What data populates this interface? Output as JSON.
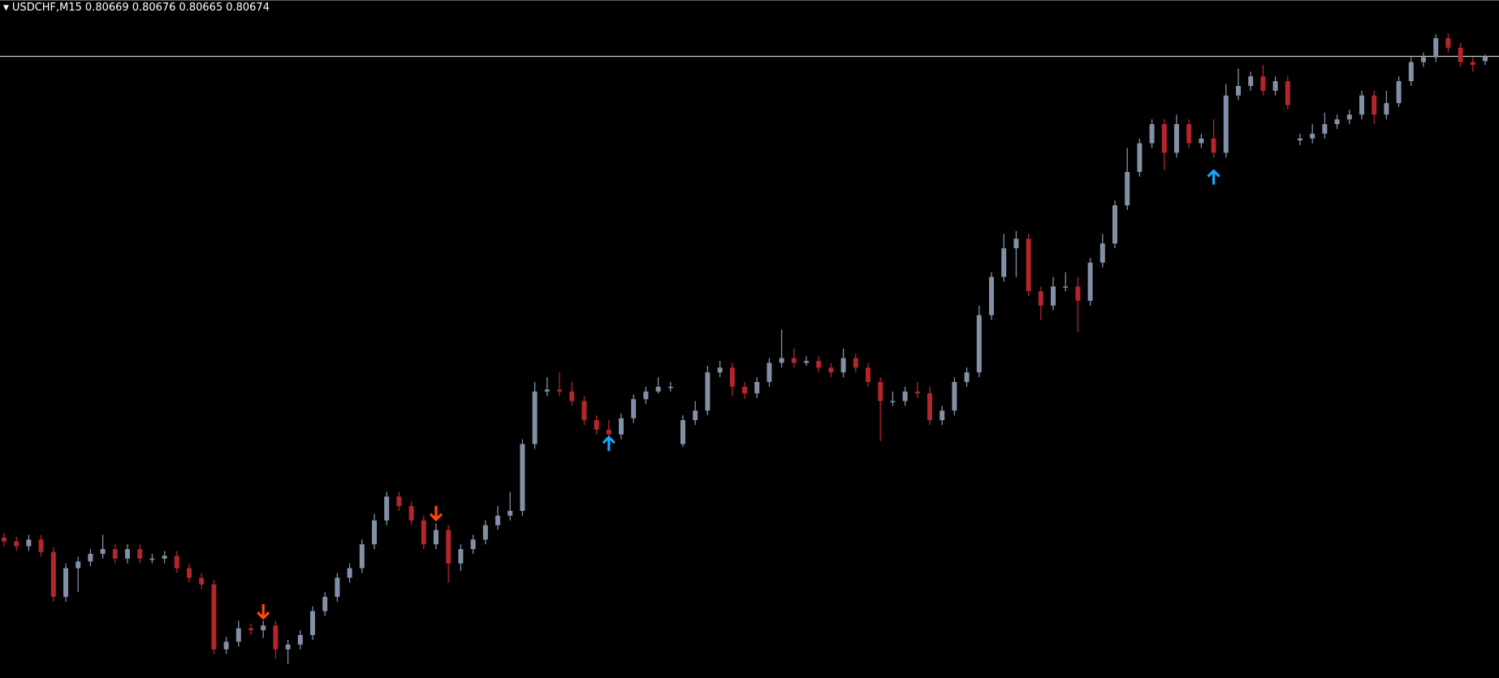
{
  "chart_data": {
    "type": "candlestick",
    "title": "USDCHF,M15",
    "open": [
      0.8017,
      0.80166,
      0.80161,
      0.80168,
      0.80155,
      0.80108,
      0.80138,
      0.80145,
      0.80153,
      0.80158,
      0.80148,
      0.80158,
      0.80148,
      0.80148,
      0.80151,
      0.80138,
      0.80128,
      0.80121,
      0.80053,
      0.80061,
      0.80075,
      0.80073,
      0.80078,
      0.80053,
      0.80058,
      0.80068,
      0.80093,
      0.80108,
      0.80128,
      0.80138,
      0.80163,
      0.80188,
      0.80213,
      0.80203,
      0.80188,
      0.80163,
      0.80178,
      0.80143,
      0.80158,
      0.80168,
      0.80183,
      0.80193,
      0.80198,
      0.80268,
      0.80323,
      0.80325,
      0.80323,
      0.80313,
      0.80293,
      0.80283,
      0.80278,
      0.80295,
      0.80315,
      0.80323,
      0.80328,
      0.80268,
      0.80293,
      0.80303,
      0.80343,
      0.80348,
      0.80328,
      0.80321,
      0.80333,
      0.80353,
      0.80358,
      0.80353,
      0.80355,
      0.80348,
      0.80343,
      0.80358,
      0.80348,
      0.80333,
      0.80313,
      0.80313,
      0.80323,
      0.80321,
      0.80293,
      0.80303,
      0.80333,
      0.80343,
      0.80403,
      0.80443,
      0.80473,
      0.80483,
      0.80428,
      0.80413,
      0.80433,
      0.80433,
      0.80418,
      0.80458,
      0.80478,
      0.80518,
      0.80553,
      0.80583,
      0.80603,
      0.80573,
      0.80603,
      0.80583,
      0.80588,
      0.80573,
      0.80633,
      0.80643,
      0.80653,
      0.80638,
      0.80648,
      0.80586,
      0.80588,
      0.80593,
      0.80603,
      0.80608,
      0.80613,
      0.80633,
      0.80613,
      0.80625,
      0.80648,
      0.80668,
      0.80673,
      0.80693,
      0.80683,
      0.80668,
      0.80669
    ],
    "high": [
      0.80175,
      0.80171,
      0.80173,
      0.80173,
      0.8016,
      0.80143,
      0.8015,
      0.80158,
      0.80173,
      0.80163,
      0.80163,
      0.80163,
      0.80153,
      0.80156,
      0.80156,
      0.80143,
      0.80133,
      0.80126,
      0.80066,
      0.80083,
      0.8008,
      0.80083,
      0.80083,
      0.80063,
      0.80073,
      0.80098,
      0.80113,
      0.80133,
      0.80143,
      0.80168,
      0.80195,
      0.80218,
      0.80218,
      0.80208,
      0.80193,
      0.80185,
      0.80183,
      0.80163,
      0.80173,
      0.80188,
      0.80203,
      0.80218,
      0.80273,
      0.80333,
      0.80338,
      0.80343,
      0.80333,
      0.80318,
      0.80298,
      0.80293,
      0.803,
      0.8032,
      0.80328,
      0.80338,
      0.80333,
      0.80298,
      0.80313,
      0.8035,
      0.80355,
      0.80353,
      0.80333,
      0.80338,
      0.80358,
      0.80388,
      0.80368,
      0.8036,
      0.8036,
      0.80353,
      0.80368,
      0.80363,
      0.80353,
      0.80338,
      0.80323,
      0.80328,
      0.80333,
      0.80328,
      0.80308,
      0.80338,
      0.80348,
      0.80413,
      0.80448,
      0.80488,
      0.80491,
      0.80488,
      0.80433,
      0.80443,
      0.80448,
      0.80443,
      0.80463,
      0.80488,
      0.80523,
      0.80578,
      0.80588,
      0.80608,
      0.80608,
      0.80613,
      0.80608,
      0.80593,
      0.80608,
      0.80645,
      0.80661,
      0.80658,
      0.80665,
      0.80653,
      0.80653,
      0.80593,
      0.80603,
      0.80615,
      0.80613,
      0.80618,
      0.80638,
      0.80638,
      0.80638,
      0.80653,
      0.80673,
      0.80678,
      0.80697,
      0.80698,
      0.80688,
      0.80673,
      0.80676
    ],
    "low": [
      0.80161,
      0.80156,
      0.80156,
      0.8015,
      0.80103,
      0.80103,
      0.80113,
      0.8014,
      0.80148,
      0.80143,
      0.80143,
      0.80143,
      0.80143,
      0.80143,
      0.80133,
      0.80123,
      0.80116,
      0.80048,
      0.80048,
      0.80056,
      0.80068,
      0.80065,
      0.80043,
      0.80038,
      0.80053,
      0.80063,
      0.80088,
      0.80103,
      0.80123,
      0.80133,
      0.80158,
      0.80183,
      0.80198,
      0.80183,
      0.80158,
      0.80158,
      0.80123,
      0.80135,
      0.80153,
      0.80163,
      0.80178,
      0.80188,
      0.80193,
      0.80263,
      0.80318,
      0.80318,
      0.80308,
      0.80288,
      0.80278,
      0.80273,
      0.80273,
      0.8029,
      0.8031,
      0.80321,
      0.80323,
      0.80265,
      0.80288,
      0.80298,
      0.80338,
      0.80318,
      0.80315,
      0.80316,
      0.80328,
      0.80348,
      0.80348,
      0.8035,
      0.80343,
      0.80338,
      0.80338,
      0.80343,
      0.80328,
      0.80271,
      0.80308,
      0.80308,
      0.80316,
      0.80288,
      0.80288,
      0.80298,
      0.80328,
      0.80338,
      0.80398,
      0.80438,
      0.80443,
      0.80423,
      0.80398,
      0.80408,
      0.80428,
      0.80385,
      0.80413,
      0.80453,
      0.80473,
      0.80513,
      0.80548,
      0.80578,
      0.80555,
      0.80568,
      0.80578,
      0.80578,
      0.80568,
      0.80568,
      0.80628,
      0.80638,
      0.80633,
      0.80633,
      0.80618,
      0.80581,
      0.80583,
      0.80588,
      0.80598,
      0.80603,
      0.80608,
      0.80603,
      0.80608,
      0.80621,
      0.80643,
      0.80663,
      0.80668,
      0.80678,
      0.80663,
      0.80658,
      0.80665
    ],
    "close": [
      0.80166,
      0.80161,
      0.80168,
      0.80155,
      0.80108,
      0.80138,
      0.80145,
      0.80153,
      0.80158,
      0.80148,
      0.80158,
      0.80148,
      0.80148,
      0.80151,
      0.80138,
      0.80128,
      0.80121,
      0.80053,
      0.80061,
      0.80075,
      0.80073,
      0.80078,
      0.80053,
      0.80058,
      0.80068,
      0.80093,
      0.80108,
      0.80128,
      0.80138,
      0.80163,
      0.80188,
      0.80213,
      0.80203,
      0.80188,
      0.80163,
      0.80178,
      0.80143,
      0.80158,
      0.80168,
      0.80183,
      0.80193,
      0.80198,
      0.80268,
      0.80323,
      0.80325,
      0.80323,
      0.80313,
      0.80293,
      0.80283,
      0.80278,
      0.80295,
      0.80315,
      0.80323,
      0.80328,
      0.80328,
      0.80293,
      0.80303,
      0.80343,
      0.80348,
      0.80328,
      0.80321,
      0.80333,
      0.80353,
      0.80358,
      0.80353,
      0.80355,
      0.80348,
      0.80343,
      0.80358,
      0.80348,
      0.80333,
      0.80313,
      0.80313,
      0.80323,
      0.80321,
      0.80293,
      0.80303,
      0.80333,
      0.80343,
      0.80403,
      0.80443,
      0.80473,
      0.80483,
      0.80428,
      0.80413,
      0.80433,
      0.80433,
      0.80418,
      0.80458,
      0.80478,
      0.80518,
      0.80553,
      0.80583,
      0.80603,
      0.80573,
      0.80603,
      0.80583,
      0.80588,
      0.80573,
      0.80633,
      0.80643,
      0.80653,
      0.80638,
      0.80648,
      0.80623,
      0.80588,
      0.80593,
      0.80603,
      0.80608,
      0.80613,
      0.80633,
      0.80613,
      0.80625,
      0.80648,
      0.80668,
      0.80673,
      0.80693,
      0.80683,
      0.80668,
      0.80665,
      0.80674
    ],
    "up_color": "#8290a6",
    "down_color": "#b3262b",
    "ylim": [
      0.80023,
      0.80733
    ],
    "price_line": 0.80674,
    "price_line_color": "#c8c8c8",
    "down_arrows": {
      "color": "#ff4a0a",
      "x": [
        21,
        35
      ],
      "values": [
        0.80085,
        0.80188
      ]
    },
    "up_arrows": {
      "color": "#1aa3ff",
      "x": [
        49,
        98
      ],
      "values": [
        0.80276,
        0.80555
      ]
    }
  }
}
